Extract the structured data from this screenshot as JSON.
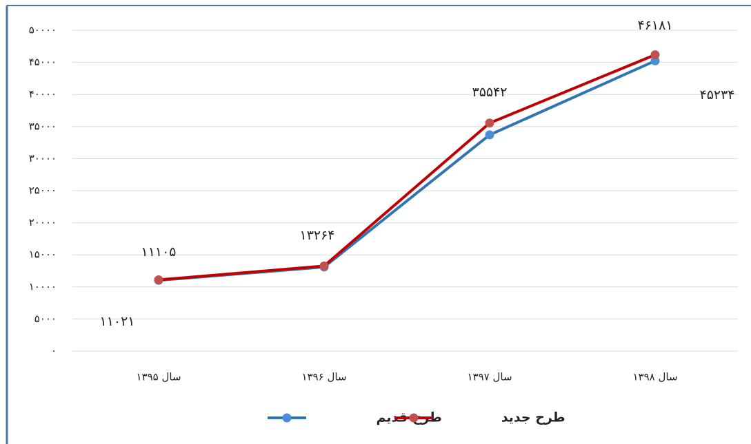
{
  "chart_data": {
    "type": "line",
    "categories": [
      "سال ۱۳۹۵",
      "سال ۱۳۹۶",
      "سال ۱۳۹۷",
      "سال ۱۳۹۸"
    ],
    "series": [
      {
        "name": "طرح قدیم",
        "color": "#2e75b6",
        "marker_color": "#4a8fd6",
        "values": [
          11021,
          13100,
          33700,
          45234
        ],
        "value_labels": [
          "۱۱۰۲۱",
          null,
          null,
          "۴۵۲۳۴"
        ]
      },
      {
        "name": "طرح جدید",
        "color": "#c00000",
        "marker_color": "#c0504d",
        "values": [
          11105,
          13264,
          35542,
          46181
        ],
        "value_labels": [
          "۱۱۱۰۵",
          "۱۳۲۶۴",
          "۳۵۵۴۲",
          "۴۶۱۸۱"
        ]
      }
    ],
    "ylim": [
      0,
      50000
    ],
    "yticks": [
      {
        "value": 0,
        "label": "۰"
      },
      {
        "value": 5000,
        "label": "۵۰۰۰"
      },
      {
        "value": 10000,
        "label": "۱۰۰۰۰"
      },
      {
        "value": 15000,
        "label": "۱۵۰۰۰"
      },
      {
        "value": 20000,
        "label": "۲۰۰۰۰"
      },
      {
        "value": 25000,
        "label": "۲۵۰۰۰"
      },
      {
        "value": 30000,
        "label": "۳۰۰۰۰"
      },
      {
        "value": 35000,
        "label": "۳۵۰۰۰"
      },
      {
        "value": 40000,
        "label": "۴۰۰۰۰"
      },
      {
        "value": 45000,
        "label": "۴۵۰۰۰"
      },
      {
        "value": 50000,
        "label": "۵۰۰۰۰"
      }
    ],
    "grid": true,
    "legend": "bottom"
  }
}
